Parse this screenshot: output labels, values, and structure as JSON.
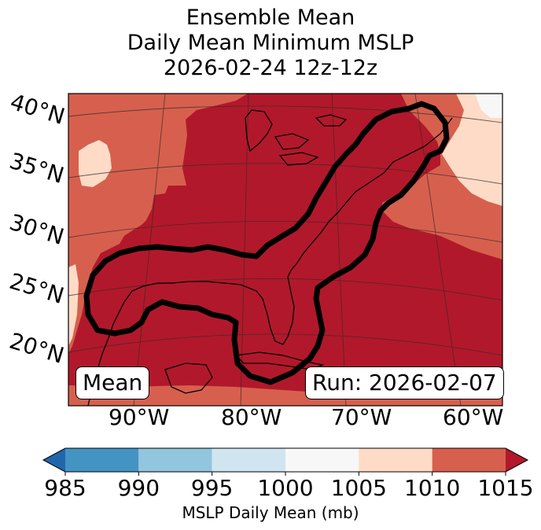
{
  "title": {
    "line1": "Ensemble Mean",
    "line2": "Daily Mean Minimum MSLP",
    "line3": "2026-02-24 12z-12z"
  },
  "lat_labels": [
    "40°N",
    "35°N",
    "30°N",
    "25°N",
    "20°N"
  ],
  "lon_labels": [
    "90°W",
    "80°W",
    "70°W",
    "60°W"
  ],
  "panel_label": "Mean",
  "run_label": "Run: 2026-02-07",
  "colorbar": {
    "ticks": [
      "985",
      "990",
      "995",
      "1000",
      "1005",
      "1010",
      "1015"
    ],
    "label": "MSLP Daily Mean (mb)",
    "bins": [
      {
        "range": [
          980,
          985
        ],
        "color": "#2166ac"
      },
      {
        "range": [
          985,
          990
        ],
        "color": "#4393c3"
      },
      {
        "range": [
          990,
          995
        ],
        "color": "#92c5de"
      },
      {
        "range": [
          995,
          1000
        ],
        "color": "#d1e5f0"
      },
      {
        "range": [
          1000,
          1005
        ],
        "color": "#f7f7f7"
      },
      {
        "range": [
          1005,
          1010
        ],
        "color": "#fddbc7"
      },
      {
        "range": [
          1010,
          1015
        ],
        "color": "#d6604d"
      },
      {
        "range": [
          1015,
          1020
        ],
        "color": "#b2182b"
      }
    ]
  },
  "colors": {
    "deep_red": "#b2182b",
    "mid_red": "#d6604d",
    "peach": "#fddbc7",
    "white": "#f7f7f7",
    "contour": "#000000"
  }
}
